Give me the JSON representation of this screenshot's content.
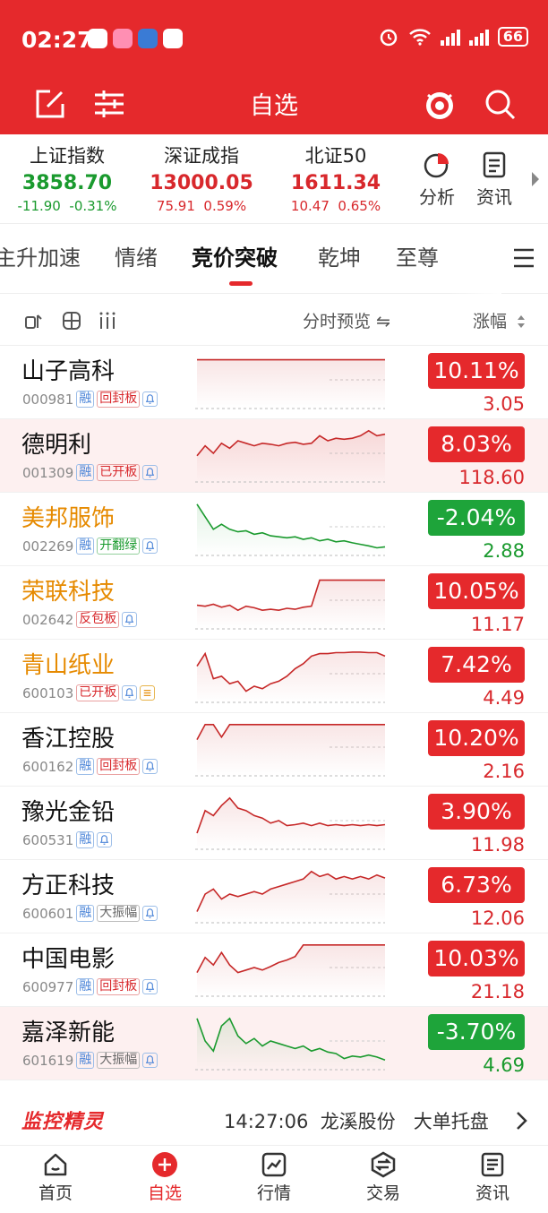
{
  "status": {
    "time": "02:27",
    "battery": "66"
  },
  "nav": {
    "title": "自选"
  },
  "indices": [
    {
      "name": "上证指数",
      "value": "3858.70",
      "change": "-11.90",
      "pct": "-0.31%",
      "dir": "down"
    },
    {
      "name": "深证成指",
      "value": "13000.05",
      "change": "75.91",
      "pct": "0.59%",
      "dir": "up"
    },
    {
      "name": "北证50",
      "value": "1611.34",
      "change": "10.47",
      "pct": "0.65%",
      "dir": "up"
    }
  ],
  "tools": {
    "analysis": "分析",
    "news": "资讯"
  },
  "tabs": [
    "主升加速",
    "情绪",
    "竞价突破",
    "乾坤",
    "至尊"
  ],
  "columns": {
    "preview": "分时预览 ⇋",
    "change": "涨幅"
  },
  "stocks": [
    {
      "name": "山子高科",
      "code": "000981",
      "tags": [
        "融",
        "回封板"
      ],
      "pct": "10.11%",
      "price": "3.05",
      "dir": "up",
      "color": "normal",
      "spark": [
        0.1,
        0.1,
        0.1,
        0.1,
        0.1,
        0.1,
        0.1,
        0.1,
        0.1,
        0.1,
        0.1,
        0.1,
        0.1,
        0.1,
        0.1,
        0.1,
        0.1,
        0.1,
        0.1,
        0.1,
        0.1,
        0.1,
        0.1,
        0.1
      ]
    },
    {
      "name": "德明利",
      "code": "001309",
      "tags": [
        "融",
        "已开板"
      ],
      "pct": "8.03%",
      "price": "118.60",
      "dir": "up",
      "color": "normal",
      "spark": [
        0.55,
        0.35,
        0.5,
        0.3,
        0.4,
        0.25,
        0.3,
        0.35,
        0.3,
        0.32,
        0.35,
        0.3,
        0.28,
        0.32,
        0.3,
        0.15,
        0.25,
        0.2,
        0.22,
        0.2,
        0.15,
        0.05,
        0.15,
        0.12
      ]
    },
    {
      "name": "美邦服饰",
      "code": "002269",
      "tags": [
        "融",
        "开翻绿"
      ],
      "pct": "-2.04%",
      "price": "2.88",
      "dir": "down",
      "color": "orange",
      "spark": [
        0.05,
        0.3,
        0.55,
        0.45,
        0.55,
        0.6,
        0.58,
        0.65,
        0.62,
        0.68,
        0.7,
        0.72,
        0.7,
        0.75,
        0.72,
        0.78,
        0.75,
        0.8,
        0.78,
        0.82,
        0.85,
        0.88,
        0.92,
        0.9
      ]
    },
    {
      "name": "荣联科技",
      "code": "002642",
      "tags": [
        "反包板"
      ],
      "pct": "10.05%",
      "price": "11.17",
      "dir": "up",
      "color": "orange",
      "spark": [
        0.6,
        0.62,
        0.58,
        0.64,
        0.6,
        0.7,
        0.62,
        0.65,
        0.7,
        0.68,
        0.7,
        0.66,
        0.68,
        0.64,
        0.62,
        0.1,
        0.1,
        0.1,
        0.1,
        0.1,
        0.1,
        0.1,
        0.1,
        0.1
      ]
    },
    {
      "name": "青山纸业",
      "code": "600103",
      "tags": [
        "已开板"
      ],
      "pct": "7.42%",
      "price": "4.49",
      "dir": "up",
      "color": "orange",
      "spark": [
        0.35,
        0.1,
        0.6,
        0.55,
        0.7,
        0.65,
        0.85,
        0.75,
        0.8,
        0.7,
        0.65,
        0.55,
        0.4,
        0.3,
        0.15,
        0.1,
        0.1,
        0.08,
        0.08,
        0.07,
        0.07,
        0.08,
        0.08,
        0.15
      ]
    },
    {
      "name": "香江控股",
      "code": "600162",
      "tags": [
        "融",
        "回封板"
      ],
      "pct": "10.20%",
      "price": "2.16",
      "dir": "up",
      "color": "normal",
      "spark": [
        0.35,
        0.05,
        0.05,
        0.3,
        0.05,
        0.05,
        0.05,
        0.05,
        0.05,
        0.05,
        0.05,
        0.05,
        0.05,
        0.05,
        0.05,
        0.05,
        0.05,
        0.05,
        0.05,
        0.05,
        0.05,
        0.05,
        0.05,
        0.05
      ]
    },
    {
      "name": "豫光金铅",
      "code": "600531",
      "tags": [
        "融"
      ],
      "pct": "3.90%",
      "price": "11.98",
      "dir": "up",
      "color": "normal",
      "spark": [
        0.75,
        0.3,
        0.4,
        0.2,
        0.05,
        0.25,
        0.3,
        0.4,
        0.45,
        0.55,
        0.5,
        0.6,
        0.58,
        0.55,
        0.6,
        0.55,
        0.6,
        0.58,
        0.6,
        0.58,
        0.6,
        0.58,
        0.6,
        0.58
      ]
    },
    {
      "name": "方正科技",
      "code": "600601",
      "tags": [
        "融",
        "大振幅"
      ],
      "pct": "6.73%",
      "price": "12.06",
      "dir": "up",
      "color": "normal",
      "spark": [
        0.85,
        0.5,
        0.4,
        0.6,
        0.5,
        0.55,
        0.5,
        0.45,
        0.5,
        0.4,
        0.35,
        0.3,
        0.25,
        0.2,
        0.05,
        0.15,
        0.1,
        0.2,
        0.15,
        0.2,
        0.15,
        0.2,
        0.12,
        0.18
      ]
    },
    {
      "name": "中国电影",
      "code": "600977",
      "tags": [
        "融",
        "回封板"
      ],
      "pct": "10.03%",
      "price": "21.18",
      "dir": "up",
      "color": "normal",
      "spark": [
        0.6,
        0.3,
        0.45,
        0.2,
        0.45,
        0.6,
        0.55,
        0.5,
        0.55,
        0.48,
        0.4,
        0.35,
        0.28,
        0.05,
        0.05,
        0.05,
        0.05,
        0.05,
        0.05,
        0.05,
        0.05,
        0.05,
        0.05,
        0.05
      ]
    },
    {
      "name": "嘉泽新能",
      "code": "601619",
      "tags": [
        "融",
        "大振幅"
      ],
      "pct": "-3.70%",
      "price": "4.69",
      "dir": "down",
      "color": "normal",
      "spark": [
        0.05,
        0.5,
        0.7,
        0.2,
        0.05,
        0.4,
        0.55,
        0.45,
        0.6,
        0.5,
        0.55,
        0.6,
        0.65,
        0.6,
        0.7,
        0.65,
        0.72,
        0.75,
        0.85,
        0.8,
        0.82,
        0.78,
        0.82,
        0.88
      ]
    }
  ],
  "monitor": {
    "logo": "监控精灵",
    "time": "14:27:06",
    "stock": "龙溪股份",
    "event": "大单托盘"
  },
  "bottom_nav": [
    "首页",
    "自选",
    "行情",
    "交易",
    "资讯"
  ]
}
